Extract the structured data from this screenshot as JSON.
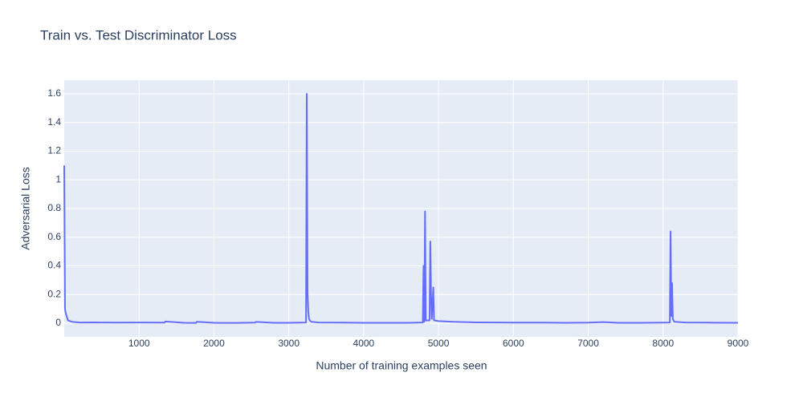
{
  "chart_data": {
    "type": "line",
    "title": "Train vs. Test Discriminator Loss",
    "x_label": "Number of training examples seen",
    "y_label": "Adversarial Loss",
    "x": [
      0,
      10,
      20,
      50,
      100,
      200,
      400,
      700,
      1000,
      1340,
      1350,
      1600,
      1760,
      1770,
      2000,
      2300,
      2550,
      2560,
      2800,
      3000,
      3230,
      3240,
      3250,
      3260,
      3270,
      3280,
      3300,
      3400,
      3700,
      4000,
      4300,
      4600,
      4790,
      4800,
      4810,
      4820,
      4830,
      4880,
      4890,
      4900,
      4910,
      4930,
      4940,
      5000,
      5200,
      5500,
      5800,
      6100,
      6400,
      6700,
      7000,
      7200,
      7400,
      7700,
      8000,
      8090,
      8100,
      8110,
      8120,
      8130,
      8150,
      8300,
      8600,
      9000
    ],
    "series": [
      {
        "name": "Train vs. Test Discriminator Loss",
        "color": "#636efa",
        "values": [
          1.1,
          0.1,
          0.07,
          0.02,
          0.01,
          0.005,
          0.006,
          0.004,
          0.005,
          0.004,
          0.012,
          0.003,
          0.002,
          0.01,
          0.003,
          0.002,
          0.004,
          0.009,
          0.003,
          0.003,
          0.005,
          1.6,
          0.22,
          0.08,
          0.03,
          0.02,
          0.01,
          0.005,
          0.004,
          0.003,
          0.003,
          0.003,
          0.005,
          0.4,
          0.01,
          0.78,
          0.02,
          0.02,
          0.57,
          0.2,
          0.03,
          0.25,
          0.02,
          0.015,
          0.01,
          0.006,
          0.005,
          0.004,
          0.004,
          0.003,
          0.004,
          0.008,
          0.003,
          0.003,
          0.004,
          0.005,
          0.64,
          0.05,
          0.28,
          0.03,
          0.01,
          0.005,
          0.004,
          0.003
        ]
      }
    ],
    "xlim": [
      0,
      9000
    ],
    "ylim": [
      -0.095,
      1.695
    ],
    "xticks": [
      1000,
      2000,
      3000,
      4000,
      5000,
      6000,
      7000,
      8000,
      9000
    ],
    "yticks": [
      0,
      0.2,
      0.4,
      0.6,
      0.8,
      1,
      1.2,
      1.4,
      1.6
    ],
    "grid": true,
    "background": "#e5ecf6"
  }
}
